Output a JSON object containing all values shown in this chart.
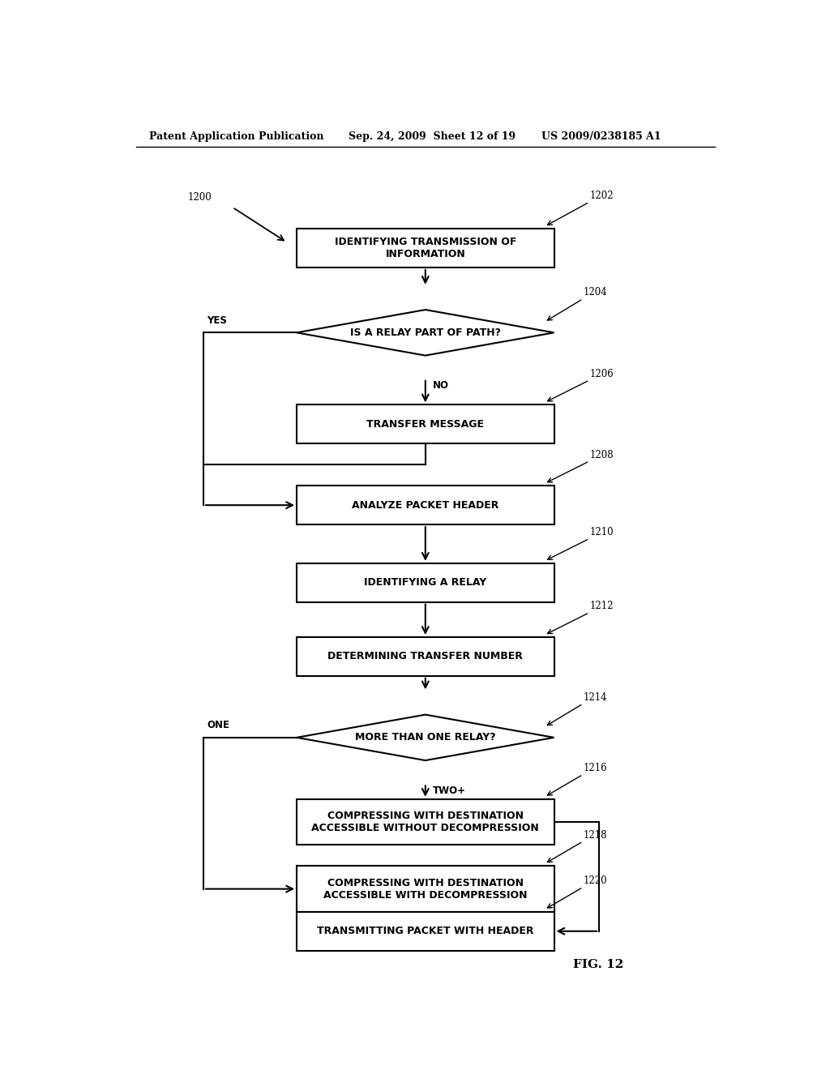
{
  "header_left": "Patent Application Publication",
  "header_mid": "Sep. 24, 2009  Sheet 12 of 19",
  "header_right": "US 2009/0238185 A1",
  "fig_label": "FIG. 12",
  "bg_color": "#ffffff",
  "box_color": "#ffffff",
  "box_edge": "#000000",
  "text_color": "#000000"
}
